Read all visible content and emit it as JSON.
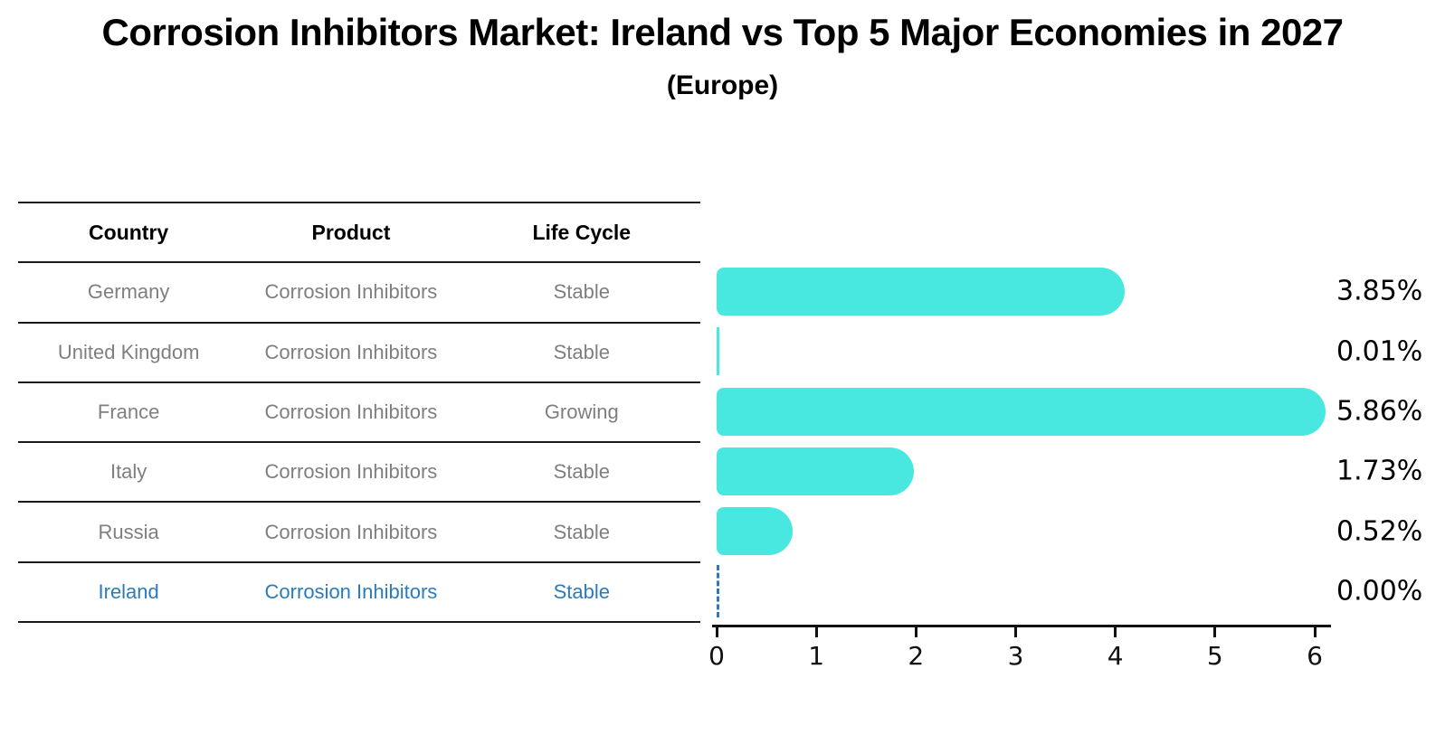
{
  "title": "Corrosion Inhibitors Market: Ireland vs Top 5 Major Economies in 2027",
  "subtitle": "(Europe)",
  "table": {
    "headers": [
      "Country",
      "Product",
      "Life Cycle"
    ],
    "rows": [
      {
        "country": "Germany",
        "product": "Corrosion Inhibitors",
        "life_cycle": "Stable",
        "highlight": false
      },
      {
        "country": "United Kingdom",
        "product": "Corrosion Inhibitors",
        "life_cycle": "Stable",
        "highlight": false
      },
      {
        "country": "France",
        "product": "Corrosion Inhibitors",
        "life_cycle": "Growing",
        "highlight": false
      },
      {
        "country": "Italy",
        "product": "Corrosion Inhibitors",
        "life_cycle": "Stable",
        "highlight": false
      },
      {
        "country": "Russia",
        "product": "Corrosion Inhibitors",
        "life_cycle": "Stable",
        "highlight": false
      },
      {
        "country": "Ireland",
        "product": "Corrosion Inhibitors",
        "life_cycle": "Stable",
        "highlight": true
      }
    ]
  },
  "chart_data": {
    "type": "bar",
    "orientation": "horizontal",
    "title": "Corrosion Inhibitors Market: Ireland vs Top 5 Major Economies in 2027 (Europe)",
    "categories": [
      "Germany",
      "United Kingdom",
      "France",
      "Italy",
      "Russia",
      "Ireland"
    ],
    "values": [
      3.85,
      0.01,
      5.86,
      1.73,
      0.52,
      0.0
    ],
    "value_labels": [
      "3.85%",
      "0.01%",
      "5.86%",
      "1.73%",
      "0.52%",
      "0.00%"
    ],
    "xlim": [
      0,
      6
    ],
    "x_ticks": [
      "0",
      "1",
      "2",
      "3",
      "4",
      "5",
      "6"
    ],
    "grid": "off",
    "legend": "none",
    "bar_color": "#48E8E0",
    "highlight_color": "#2B7BBA",
    "highlight_category": "Ireland"
  },
  "colors": {
    "bar": "#48E8E0",
    "highlight_blue": "#2B7BBA",
    "row_text_gray": "#7F7F7F",
    "line_black": "#111111"
  }
}
